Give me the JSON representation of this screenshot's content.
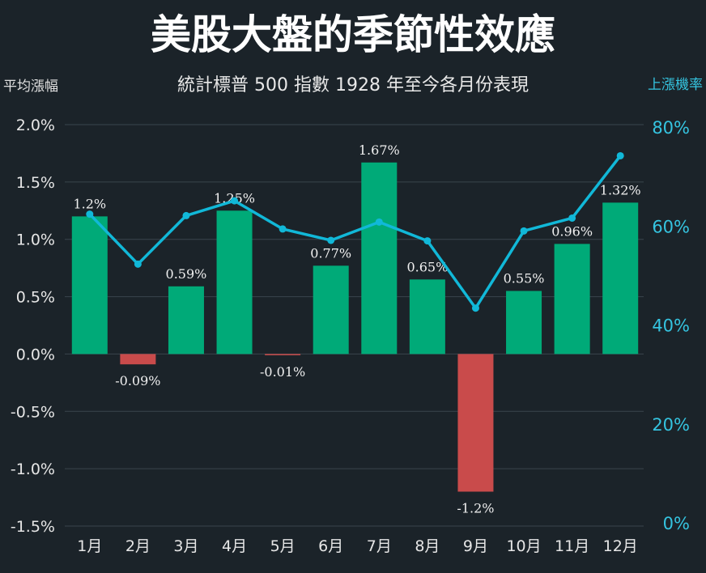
{
  "chart_data": {
    "type": "bar",
    "title": "美股大盤的季節性效應",
    "subtitle": "統計標普 500 指數 1928 年至今各月份表現",
    "ylabel": "平均漲幅",
    "y2label": "上漲機率",
    "categories": [
      "1月",
      "2月",
      "3月",
      "4月",
      "5月",
      "6月",
      "7月",
      "8月",
      "9月",
      "10月",
      "11月",
      "12月"
    ],
    "ylim": [
      -1.5,
      2.0
    ],
    "y_ticks": [
      "2.0%",
      "1.5%",
      "1.0%",
      "0.5%",
      "0.0%",
      "-0.5%",
      "-1.0%",
      "-1.5%"
    ],
    "y_tick_values": [
      2.0,
      1.5,
      1.0,
      0.5,
      0.0,
      -0.5,
      -1.0,
      -1.5
    ],
    "y2lim": [
      0,
      80
    ],
    "y2_ticks": [
      "80%",
      "60%",
      "40%",
      "20%",
      "0%"
    ],
    "y2_tick_values": [
      80,
      60,
      40,
      20,
      0
    ],
    "series": [
      {
        "type": "bar",
        "values": [
          1.2,
          -0.09,
          0.59,
          1.25,
          -0.01,
          0.77,
          1.67,
          0.65,
          -1.2,
          0.55,
          0.96,
          1.32
        ],
        "labels": [
          "1.2%",
          "-0.09%",
          "0.59%",
          "1.25%",
          "-0.01%",
          "0.77%",
          "1.67%",
          "0.65%",
          "-1.2%",
          "0.55%",
          "0.96%",
          "1.32%"
        ],
        "color_positive": "#00aa78",
        "color_negative": "#c94b4b"
      },
      {
        "type": "line",
        "axis": "right",
        "values": [
          62.4,
          52.3,
          62.1,
          65.1,
          59.4,
          57.1,
          60.8,
          57.0,
          43.4,
          59.0,
          61.6,
          74.2
        ],
        "color": "#11b8d8"
      }
    ],
    "grid": true
  }
}
